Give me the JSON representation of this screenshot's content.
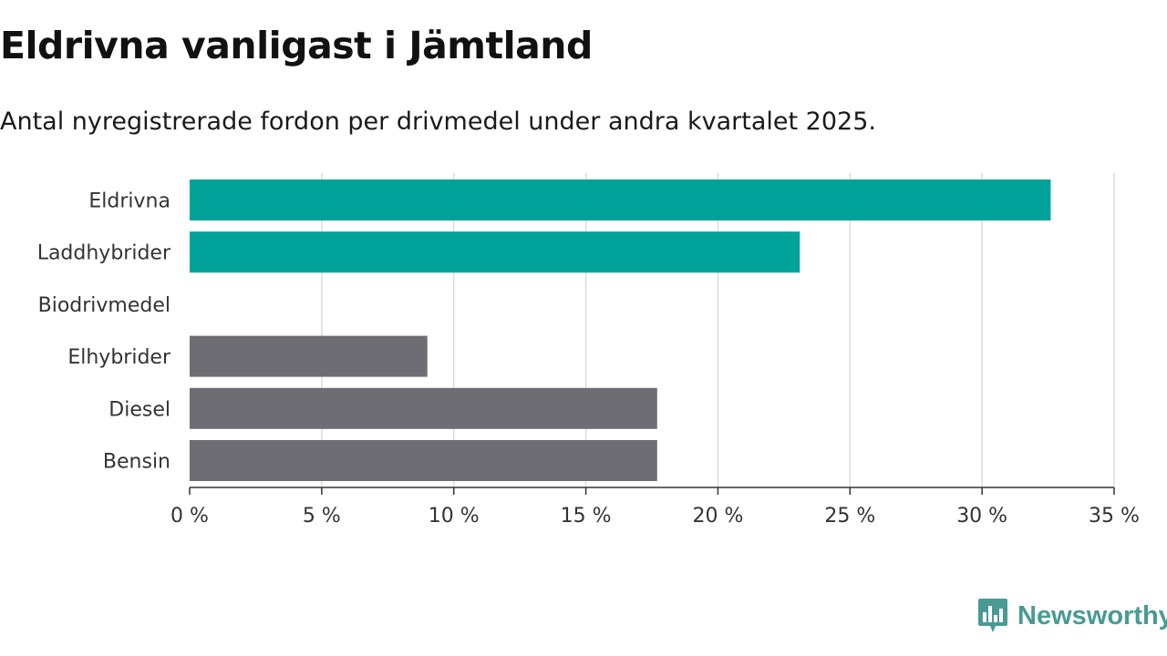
{
  "chart_data": {
    "type": "bar",
    "orientation": "horizontal",
    "title": "Eldrivna vanligast i Jämtland",
    "subtitle": "Antal nyregistrerade fordon per drivmedel under andra kvartalet 2025.",
    "categories": [
      "Eldrivna",
      "Laddhybrider",
      "Biodrivmedel",
      "Elhybrider",
      "Diesel",
      "Bensin"
    ],
    "values": [
      32.6,
      23.1,
      0,
      9.0,
      17.7,
      17.7
    ],
    "bar_colors": [
      "#00a39a",
      "#00a39a",
      "#6e6d73",
      "#6e6d73",
      "#6e6d73",
      "#6e6d73"
    ],
    "xlim": [
      0,
      35
    ],
    "xticks": [
      0,
      5,
      10,
      15,
      20,
      25,
      30,
      35
    ],
    "xtick_labels": [
      "0 %",
      "5 %",
      "10 %",
      "15 %",
      "20 %",
      "25 %",
      "30 %",
      "35 %"
    ],
    "xlabel": "",
    "ylabel": "",
    "grid": true,
    "grid_color": "#dddddd",
    "legend": "none"
  },
  "branding": {
    "logo_text": "Newsworthy",
    "logo_icon": "newsworthy-chart-icon",
    "logo_color": "#4a9a94"
  }
}
